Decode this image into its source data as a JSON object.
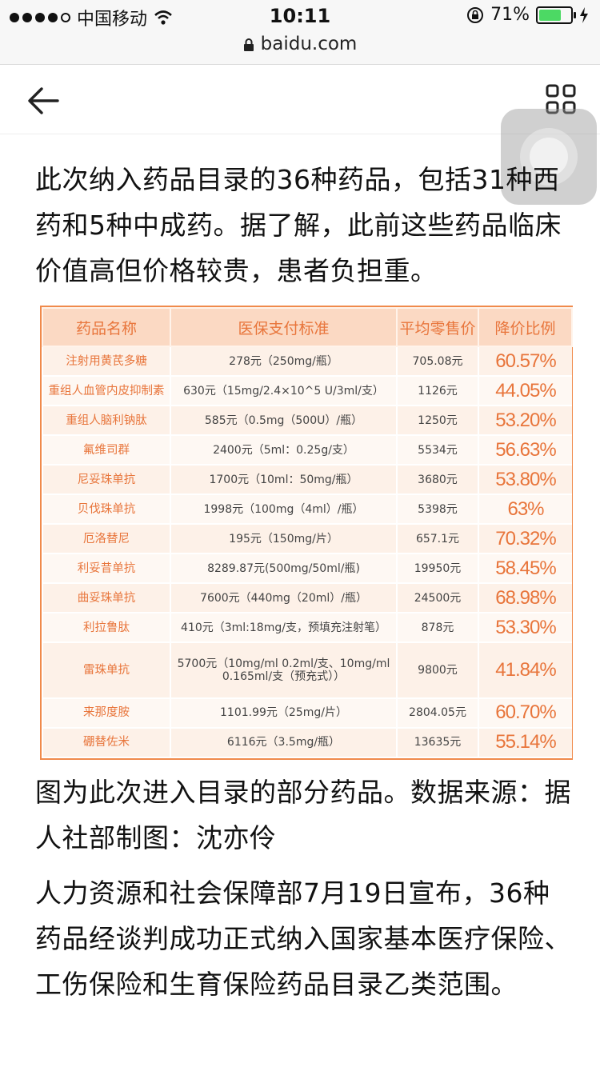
{
  "status_bar": {
    "carrier": "中国移动",
    "time": "10:11",
    "battery": "71%",
    "battery_level": 0.71
  },
  "url_bar": {
    "url": "baidu.com"
  },
  "article": {
    "intro": "此次纳入药品目录的36种药品，包括31种西药和5种中成药。据了解，此前这些药品临床价值高但价格较贵，患者负担重。",
    "caption": "图为此次进入目录的部分药品。数据来源：据人社部制图：沈亦伶",
    "body": "人力资源和社会保障部7月19日宣布，36种药品经谈判成功正式纳入国家基本医疗保险、工伤保险和生育保险药品目录乙类范围。"
  },
  "table": {
    "headers": [
      "药品名称",
      "医保支付标准",
      "平均零售价",
      "降价比例"
    ],
    "rows": [
      [
        "注射用黄芪多糖",
        "278元（250mg/瓶）",
        "705.08元",
        "60.57%"
      ],
      [
        "重组人血管内皮抑制素",
        "630元（15mg/2.4×10^5 U/3ml/支）",
        "1126元",
        "44.05%"
      ],
      [
        "重组人脑利钠肽",
        "585元（0.5mg（500U）/瓶）",
        "1250元",
        "53.20%"
      ],
      [
        "氟维司群",
        "2400元（5ml：0.25g/支）",
        "5534元",
        "56.63%"
      ],
      [
        "尼妥珠单抗",
        "1700元（10ml：50mg/瓶）",
        "3680元",
        "53.80%"
      ],
      [
        "贝伐珠单抗",
        "1998元（100mg（4ml）/瓶）",
        "5398元",
        "63%"
      ],
      [
        "厄洛替尼",
        "195元（150mg/片）",
        "657.1元",
        "70.32%"
      ],
      [
        "利妥昔单抗",
        "8289.87元(500mg/50ml/瓶)",
        "19950元",
        "58.45%"
      ],
      [
        "曲妥珠单抗",
        "7600元（440mg（20ml）/瓶）",
        "24500元",
        "68.98%"
      ],
      [
        "利拉鲁肽",
        "410元（3ml:18mg/支，预填充注射笔）",
        "878元",
        "53.30%"
      ],
      [
        "雷珠单抗",
        "5700元（10mg/ml 0.2ml/支、10mg/ml 0.165ml/支（预充式））",
        "9800元",
        "41.84%"
      ],
      [
        "来那度胺",
        "1101.99元（25mg/片）",
        "2804.05元",
        "60.70%"
      ],
      [
        "硼替佐米",
        "6116元（3.5mg/瓶）",
        "13635元",
        "55.14%"
      ]
    ]
  },
  "icons": {
    "back": "back-arrow-icon",
    "menu": "grid-menu-icon",
    "wifi": "wifi-icon",
    "lock": "lock-icon",
    "rotation_lock": "rotation-lock-icon",
    "charging": "charging-bolt-icon"
  },
  "colors": {
    "accent": "#e8753b",
    "header_bg": "#fbd9c3",
    "table_border": "#f08a4b",
    "battery": "#4cd964"
  }
}
